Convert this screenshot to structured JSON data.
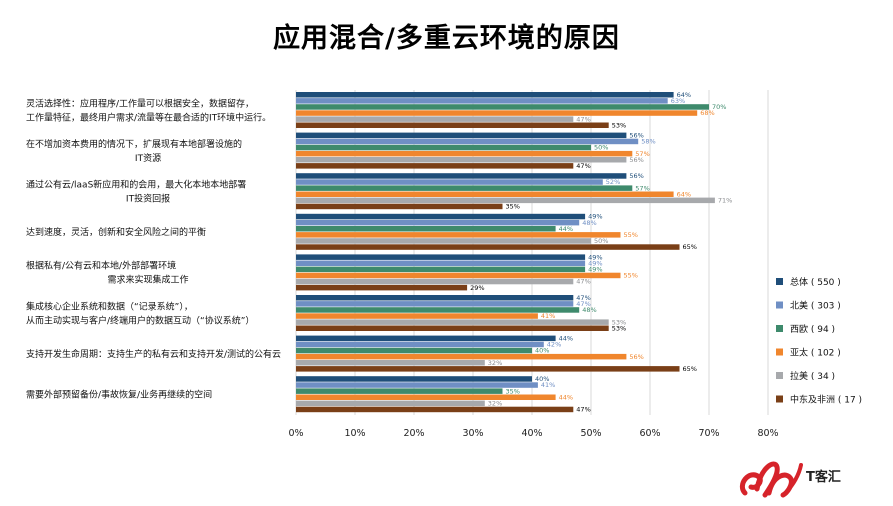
{
  "title": "应用混合/多重云环境的原因",
  "brand": "T客汇",
  "colors": {
    "总体": "#1f4e79",
    "北美": "#6f8fc4",
    "西欧": "#3e8a6c",
    "亚太": "#f0862d",
    "拉美": "#a7a9ac",
    "中东及非洲": "#7a3f17"
  },
  "chart_data": {
    "type": "bar",
    "orientation": "horizontal",
    "title": "应用混合/多重云环境的原因",
    "xlim": [
      0,
      80
    ],
    "xticks": [
      "0%",
      "10%",
      "20%",
      "30%",
      "40%",
      "50%",
      "60%",
      "70%",
      "80%"
    ],
    "grid": "vertical",
    "legend_position": "right",
    "categories": [
      [
        "灵活选择性：应用程序/工作量可以根据安全，数据留存，",
        "工作量特征，最终用户需求/流量等在最合适的IT环境中运行。"
      ],
      [
        "在不增加资本费用的情况下，扩展现有本地部署设施的",
        "IT资源"
      ],
      [
        "通过公有云/laaS新应用和的会用，最大化本地本地部署",
        "IT投资回报"
      ],
      [
        "达到速度，灵活，创新和安全风险之间的平衡"
      ],
      [
        "根据私有/公有云和本地/外部部署环境",
        "需求来实现集成工作"
      ],
      [
        "集成核心企业系统和数据（“记录系统”），",
        "从而主动实现与客户/终端用户的数据互动（“协议系统”）"
      ],
      [
        "支持开发生命周期：支持生产的私有云和支持开发/测试的公有云"
      ],
      [
        "需要外部预留备份/事故恢复/业务再继续的空间"
      ]
    ],
    "series": [
      {
        "name": "总体 ( 550 )",
        "color_key": "总体",
        "values": [
          64,
          56,
          56,
          49,
          49,
          47,
          44,
          40
        ]
      },
      {
        "name": "北美 ( 303 )",
        "color_key": "北美",
        "values": [
          63,
          58,
          52,
          48,
          49,
          47,
          42,
          41
        ]
      },
      {
        "name": "西欧 ( 94 )",
        "color_key": "西欧",
        "values": [
          70,
          50,
          57,
          44,
          49,
          48,
          40,
          35
        ]
      },
      {
        "name": "亚太 ( 102 )",
        "color_key": "亚太",
        "values": [
          68,
          57,
          64,
          55,
          55,
          41,
          56,
          44
        ]
      },
      {
        "name": "拉美 ( 34 )",
        "color_key": "拉美",
        "values": [
          47,
          56,
          71,
          50,
          47,
          53,
          32,
          32
        ]
      },
      {
        "name": "中东及非洲 ( 17 )",
        "color_key": "中东及非洲",
        "values": [
          53,
          47,
          35,
          65,
          29,
          53,
          65,
          47
        ]
      }
    ]
  }
}
